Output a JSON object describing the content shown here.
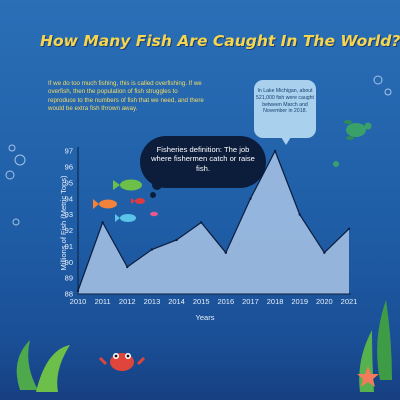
{
  "title": "How Many Fish Are Caught In The World?",
  "intro_text": "If we do too much fishing, this is called overfishing. If we overfish, then the population of fish struggles to reproduce to the numbers of fish that we need, and there would be extra fish thrown away.",
  "callouts": {
    "lake_michigan": "In Lake Michigan, about 521,000 fish were caught between March and November in 2018.",
    "definition": "Fisheries definition: The job where fishermen catch or raise fish."
  },
  "colors": {
    "background": "#1f5fa6",
    "title": "#f6d64e",
    "area_fill": "#a9c4e6",
    "line": "#0c1d3c"
  },
  "chart_data": {
    "type": "area",
    "x": [
      2010,
      2011,
      2012,
      2013,
      2014,
      2015,
      2016,
      2017,
      2018,
      2019,
      2020,
      2021
    ],
    "values": [
      88.2,
      92.5,
      89.7,
      90.8,
      91.4,
      92.5,
      90.6,
      94.0,
      97.0,
      93.0,
      90.6,
      92.1
    ],
    "title": "How Many Fish Are Caught In The World?",
    "xlabel": "Years",
    "ylabel": "Millions of Fish (Metric Tons)",
    "xlim": [
      2010,
      2021
    ],
    "ylim": [
      88,
      97
    ],
    "yticks": [
      88,
      89,
      90,
      91,
      92,
      93,
      94,
      95,
      96,
      97
    ],
    "xticks": [
      2010,
      2011,
      2012,
      2013,
      2014,
      2015,
      2016,
      2017,
      2018,
      2019,
      2020,
      2021
    ],
    "grid": false,
    "legend": "none"
  }
}
